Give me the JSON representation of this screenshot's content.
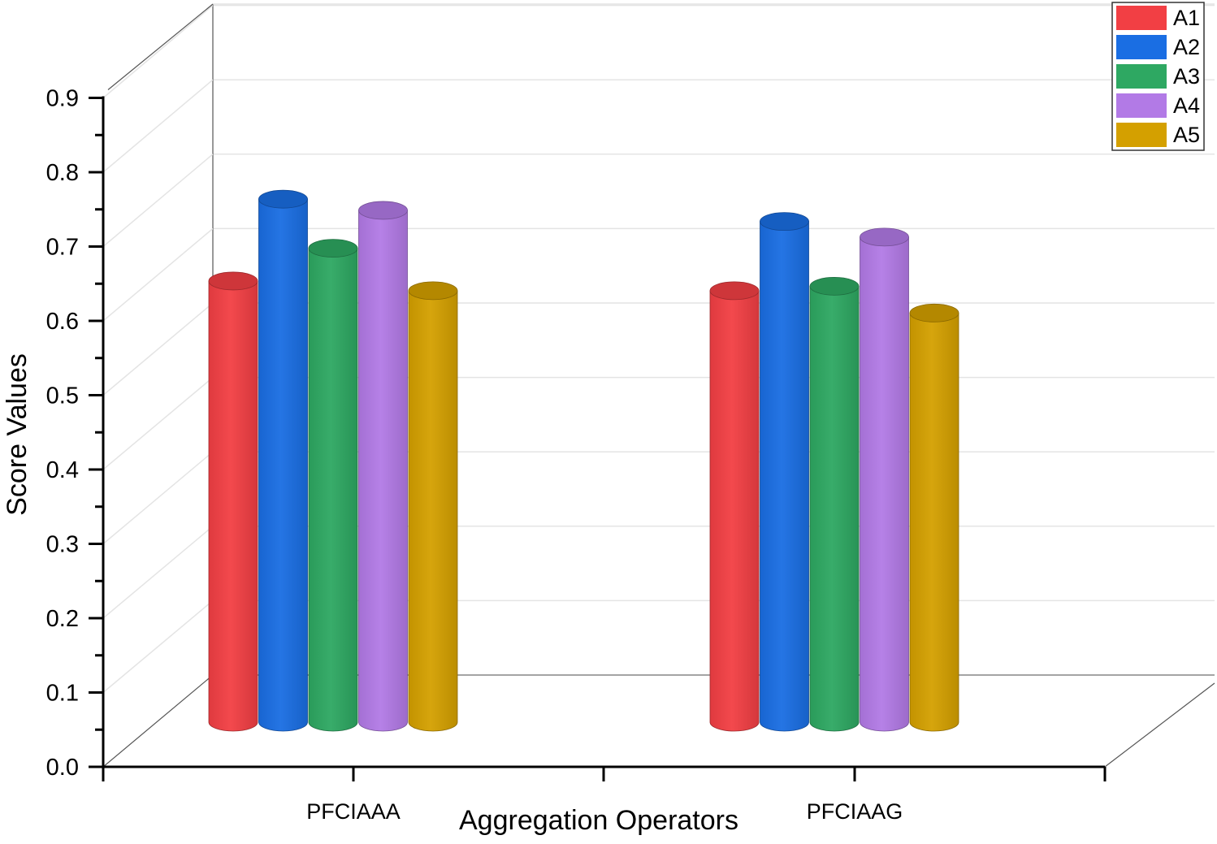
{
  "chart_data": {
    "type": "bar",
    "title": "",
    "xlabel": "Aggregation Operators",
    "ylabel": "Score Values",
    "ylim": [
      0,
      0.9
    ],
    "yticks": [
      "0.0",
      "0.1",
      "0.2",
      "0.3",
      "0.4",
      "0.5",
      "0.6",
      "0.7",
      "0.8",
      "0.9"
    ],
    "categories": [
      "PFCIAAA",
      "PFCIAAG"
    ],
    "series": [
      {
        "name": "A1",
        "color": "#f23f44",
        "values": [
          0.535,
          0.522
        ]
      },
      {
        "name": "A2",
        "color": "#1a6ee3",
        "values": [
          0.645,
          0.615
        ]
      },
      {
        "name": "A3",
        "color": "#2ea862",
        "values": [
          0.579,
          0.528
        ]
      },
      {
        "name": "A4",
        "color": "#b27ae6",
        "values": [
          0.63,
          0.594
        ]
      },
      {
        "name": "A5",
        "color": "#d4a000",
        "values": [
          0.522,
          0.492
        ]
      }
    ],
    "legend": "top-right",
    "grid": true,
    "style": "3d-cylinder"
  }
}
